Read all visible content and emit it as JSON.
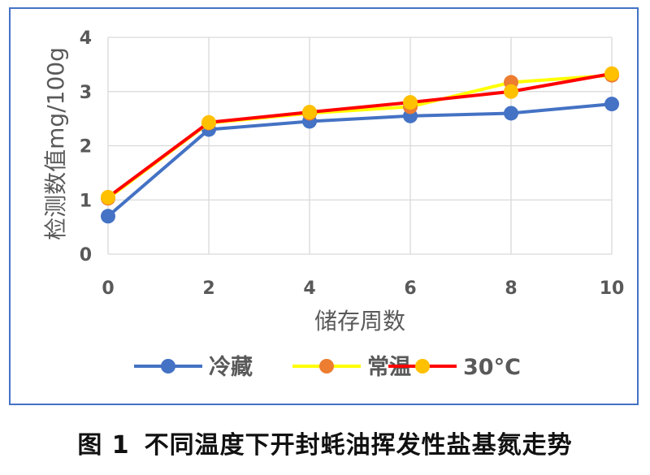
{
  "caption": {
    "figure_label": "图 1",
    "text": "不同温度下开封蚝油挥发性盐基氮走势"
  },
  "chart_data": {
    "type": "line",
    "title": "",
    "xlabel": "储存周数",
    "ylabel": "检测数值mg/100g",
    "x": [
      0,
      2,
      4,
      6,
      8,
      10
    ],
    "xlim": [
      0,
      10
    ],
    "ylim": [
      0,
      4
    ],
    "xticks": [
      "0",
      "2",
      "4",
      "6",
      "8",
      "10"
    ],
    "yticks": [
      "0",
      "1",
      "2",
      "3",
      "4"
    ],
    "grid": true,
    "legend": "bottom",
    "series": [
      {
        "name": "冷藏",
        "values": [
          0.7,
          2.3,
          2.45,
          2.55,
          2.6,
          2.77
        ],
        "line_color": "#4472C4",
        "marker_color": "#4472C4"
      },
      {
        "name": "常温",
        "values": [
          1.03,
          2.42,
          2.6,
          2.72,
          3.17,
          3.3
        ],
        "line_color": "#FFFF00",
        "marker_color": "#ED7D31"
      },
      {
        "name": "30°C",
        "values": [
          1.05,
          2.43,
          2.62,
          2.8,
          3.0,
          3.33
        ],
        "line_color": "#FF0000",
        "marker_color": "#FFC000"
      }
    ]
  }
}
